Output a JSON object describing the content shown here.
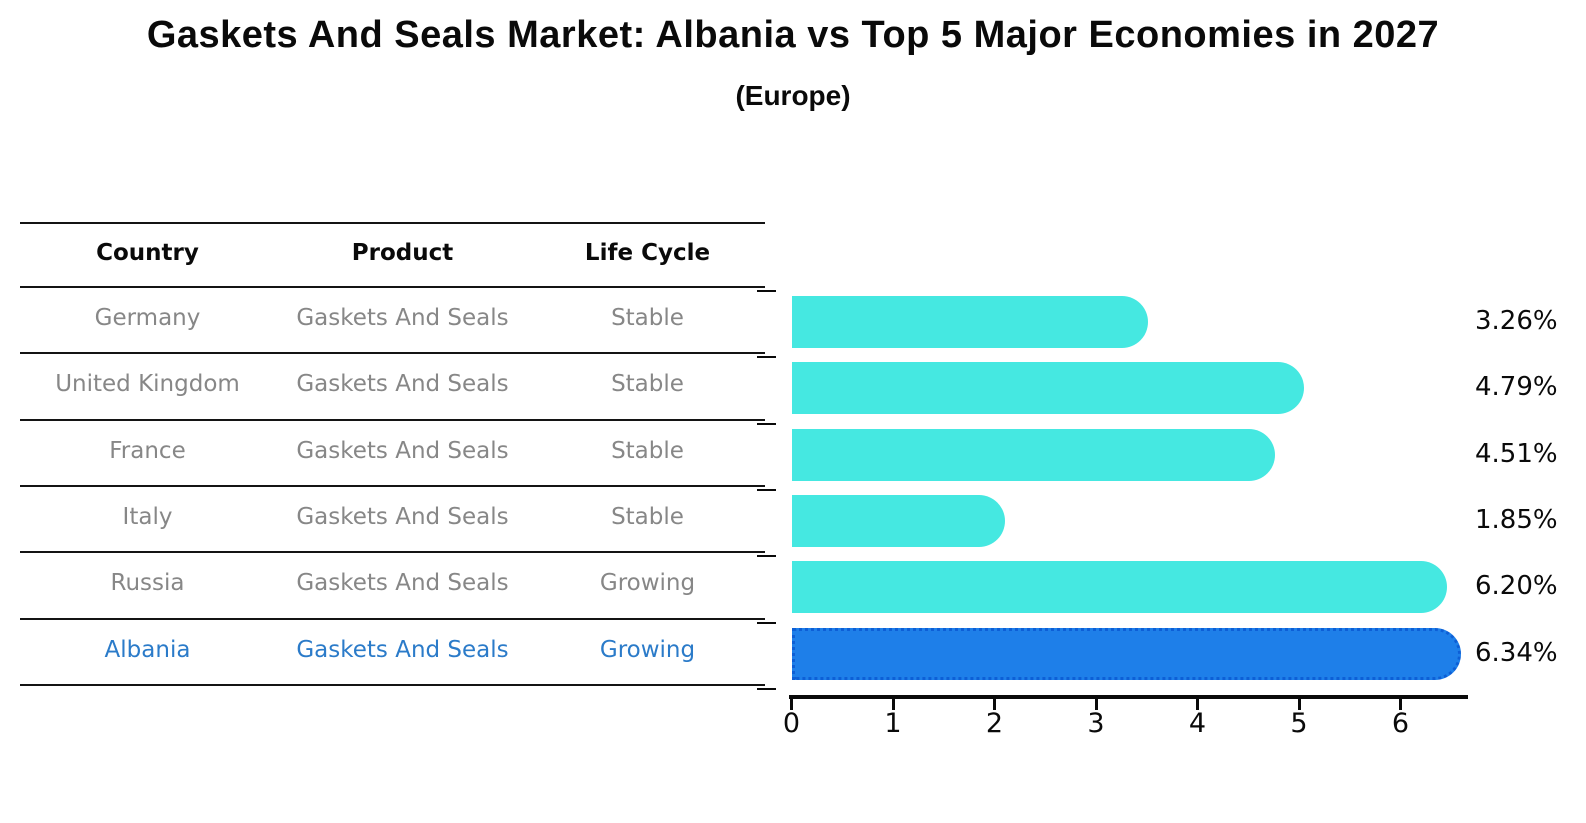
{
  "title": "Gaskets And Seals Market: Albania vs Top 5 Major Economies in 2027",
  "subtitle": "(Europe)",
  "table": {
    "headers": [
      "Country",
      "Product",
      "Life Cycle"
    ],
    "rows": [
      {
        "country": "Germany",
        "product": "Gaskets And Seals",
        "life_cycle": "Stable",
        "highlight": false
      },
      {
        "country": "United Kingdom",
        "product": "Gaskets And Seals",
        "life_cycle": "Stable",
        "highlight": false
      },
      {
        "country": "France",
        "product": "Gaskets And Seals",
        "life_cycle": "Stable",
        "highlight": false
      },
      {
        "country": "Italy",
        "product": "Gaskets And Seals",
        "life_cycle": "Stable",
        "highlight": false
      },
      {
        "country": "Russia",
        "product": "Gaskets And Seals",
        "life_cycle": "Growing",
        "highlight": false
      },
      {
        "country": "Albania",
        "product": "Gaskets And Seals",
        "life_cycle": "Growing",
        "highlight": true
      }
    ]
  },
  "chart_data": {
    "type": "bar",
    "orientation": "horizontal",
    "title": "Gaskets And Seals Market: Albania vs Top 5 Major Economies in 2027 (Europe)",
    "categories": [
      "Germany",
      "United Kingdom",
      "France",
      "Italy",
      "Russia",
      "Albania"
    ],
    "values": [
      3.26,
      4.79,
      4.51,
      1.85,
      6.2,
      6.34
    ],
    "value_labels": [
      "3.26%",
      "4.79%",
      "4.51%",
      "1.85%",
      "6.20%",
      "6.34%"
    ],
    "unit": "%",
    "xticks": [
      0,
      1,
      2,
      3,
      4,
      5,
      6
    ],
    "xlim": [
      0,
      6.66
    ],
    "grid": false,
    "legend": false,
    "highlight_index": 5,
    "bar_color": "#45e8e1",
    "highlight_color": "#1e7fe9",
    "highlight_border_color": "#0d5fd6",
    "label_color": "#0a0a0a",
    "table_text_color": "#878787",
    "highlight_text_color": "#2b7bc9"
  }
}
